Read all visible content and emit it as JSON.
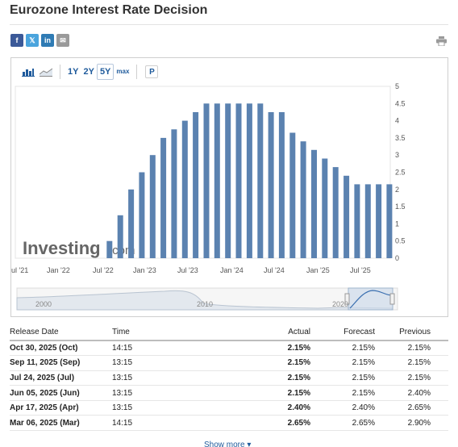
{
  "page": {
    "title": "Eurozone Interest Rate Decision"
  },
  "share": [
    {
      "name": "facebook",
      "glyph": "f"
    },
    {
      "name": "twitter",
      "glyph": "𝕏"
    },
    {
      "name": "linkedin",
      "glyph": "in"
    },
    {
      "name": "email",
      "glyph": "✉"
    }
  ],
  "toolbar": {
    "ranges": [
      "1Y",
      "2Y",
      "5Y",
      "max"
    ],
    "active_range": "5Y",
    "p_label": "P"
  },
  "watermark": {
    "brand": "Investing",
    "suffix": ".com"
  },
  "chart_data": {
    "type": "bar",
    "color": "#5b82b0",
    "x_tick_labels": [
      "ul '21",
      "Jan '22",
      "Jul '22",
      "Jan '23",
      "Jul '23",
      "Jan '24",
      "Jul '24",
      "Jan '25",
      "Jul '25"
    ],
    "y_ticks": [
      "0",
      "0.5",
      "1",
      "1.5",
      "2",
      "2.5",
      "3",
      "3.5",
      "4",
      "4.5",
      "5"
    ],
    "ylim": [
      0,
      5
    ],
    "values": [
      0.0,
      0.5,
      1.25,
      2.0,
      2.5,
      3.0,
      3.5,
      3.75,
      4.0,
      4.25,
      4.5,
      4.5,
      4.5,
      4.5,
      4.5,
      4.5,
      4.25,
      4.25,
      3.65,
      3.4,
      3.15,
      2.9,
      2.65,
      2.4,
      2.15,
      2.15,
      2.15,
      2.15
    ],
    "navigator_labels": [
      "2000",
      "2010",
      "2020"
    ]
  },
  "table": {
    "headers": {
      "date": "Release Date",
      "time": "Time",
      "actual": "Actual",
      "forecast": "Forecast",
      "previous": "Previous"
    },
    "rows": [
      {
        "date": "Oct 30, 2025 (Oct)",
        "time": "14:15",
        "actual": "2.15%",
        "forecast": "2.15%",
        "previous": "2.15%"
      },
      {
        "date": "Sep 11, 2025 (Sep)",
        "time": "13:15",
        "actual": "2.15%",
        "forecast": "2.15%",
        "previous": "2.15%"
      },
      {
        "date": "Jul 24, 2025 (Jul)",
        "time": "13:15",
        "actual": "2.15%",
        "forecast": "2.15%",
        "previous": "2.15%"
      },
      {
        "date": "Jun 05, 2025 (Jun)",
        "time": "13:15",
        "actual": "2.15%",
        "forecast": "2.15%",
        "previous": "2.40%"
      },
      {
        "date": "Apr 17, 2025 (Apr)",
        "time": "13:15",
        "actual": "2.40%",
        "forecast": "2.40%",
        "previous": "2.65%"
      },
      {
        "date": "Mar 06, 2025 (Mar)",
        "time": "14:15",
        "actual": "2.65%",
        "forecast": "2.65%",
        "previous": "2.90%"
      }
    ]
  },
  "show_more": "Show more ▾"
}
